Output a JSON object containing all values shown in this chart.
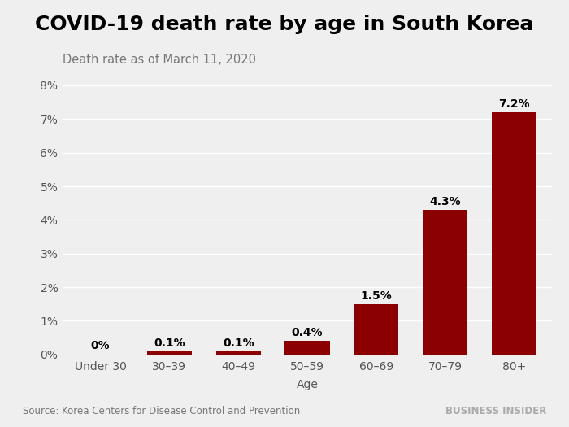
{
  "title": "COVID-19 death rate by age in South Korea",
  "subtitle": "Death rate as of March 11, 2020",
  "xlabel": "Age",
  "categories": [
    "Under 30",
    "30–39",
    "40–49",
    "50–59",
    "60–69",
    "70–79",
    "80+"
  ],
  "values": [
    0.0,
    0.1,
    0.1,
    0.4,
    1.5,
    4.3,
    7.2
  ],
  "labels": [
    "0%",
    "0.1%",
    "0.1%",
    "0.4%",
    "1.5%",
    "4.3%",
    "7.2%"
  ],
  "bar_color": "#8B0000",
  "background_color": "#efefef",
  "ylim": [
    0,
    8
  ],
  "yticks": [
    0,
    1,
    2,
    3,
    4,
    5,
    6,
    7,
    8
  ],
  "ytick_labels": [
    "0%",
    "1%",
    "2%",
    "3%",
    "4%",
    "5%",
    "6%",
    "7%",
    "8%"
  ],
  "title_fontsize": 18,
  "subtitle_fontsize": 10.5,
  "tick_fontsize": 10,
  "source_text": "Source: Korea Centers for Disease Control and Prevention",
  "watermark_text": "BUSINESS INSIDER",
  "source_fontsize": 8.5,
  "watermark_fontsize": 8.5
}
